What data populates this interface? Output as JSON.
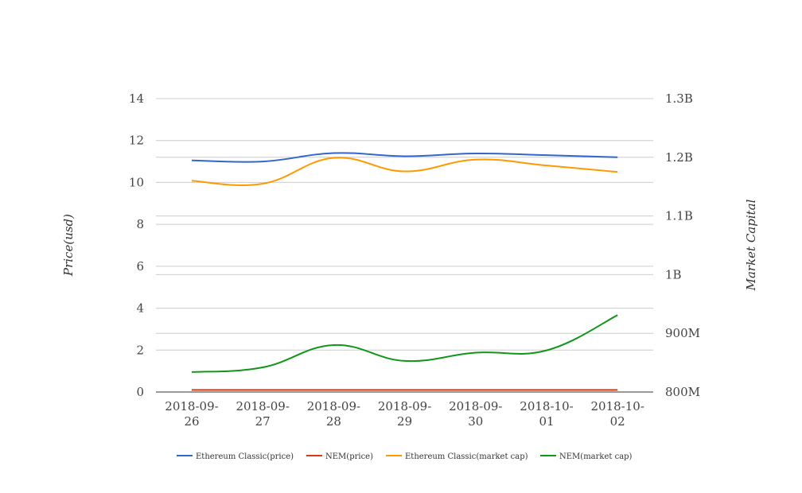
{
  "chart_data": {
    "type": "line",
    "x": [
      "2018-09-26",
      "2018-09-27",
      "2018-09-28",
      "2018-09-29",
      "2018-09-30",
      "2018-10-01",
      "2018-10-02"
    ],
    "x_tick_labels": [
      [
        "2018-09-",
        "26"
      ],
      [
        "2018-09-",
        "27"
      ],
      [
        "2018-09-",
        "28"
      ],
      [
        "2018-09-",
        "29"
      ],
      [
        "2018-09-",
        "30"
      ],
      [
        "2018-10-",
        "01"
      ],
      [
        "2018-10-",
        "02"
      ]
    ],
    "y_left": {
      "label": "Price(usd)",
      "range": [
        0,
        14
      ],
      "ticks": [
        0,
        2,
        4,
        6,
        8,
        10,
        12,
        14
      ],
      "tick_labels": [
        "0",
        "2",
        "4",
        "6",
        "8",
        "10",
        "12",
        "14"
      ]
    },
    "y_right": {
      "label": "Market Capital",
      "range": [
        800000000,
        1300000000
      ],
      "ticks": [
        800000000,
        900000000,
        1000000000,
        1100000000,
        1200000000,
        1300000000
      ],
      "tick_labels": [
        "800M",
        "900M",
        "1B",
        "1.1B",
        "1.2B",
        "1.3B"
      ]
    },
    "grid": true,
    "legend_position": "bottom",
    "series": [
      {
        "name": "Ethereum Classic(price)",
        "axis": "left",
        "color": "#3366cc",
        "values": [
          11.05,
          11.0,
          11.4,
          11.25,
          11.38,
          11.3,
          11.2
        ]
      },
      {
        "name": "NEM(price)",
        "axis": "left",
        "color": "#dc3912",
        "values": [
          0.1,
          0.1,
          0.1,
          0.1,
          0.1,
          0.1,
          0.1
        ]
      },
      {
        "name": "Ethereum Classic(market cap)",
        "axis": "right",
        "color": "#ff9900",
        "values": [
          1160000000,
          1155000000,
          1199000000,
          1176000000,
          1196000000,
          1186000000,
          1175000000
        ]
      },
      {
        "name": "NEM(market cap)",
        "axis": "right",
        "color": "#109618",
        "values": [
          834000000,
          842000000,
          880000000,
          853000000,
          867000000,
          871000000,
          931000000
        ]
      }
    ]
  }
}
